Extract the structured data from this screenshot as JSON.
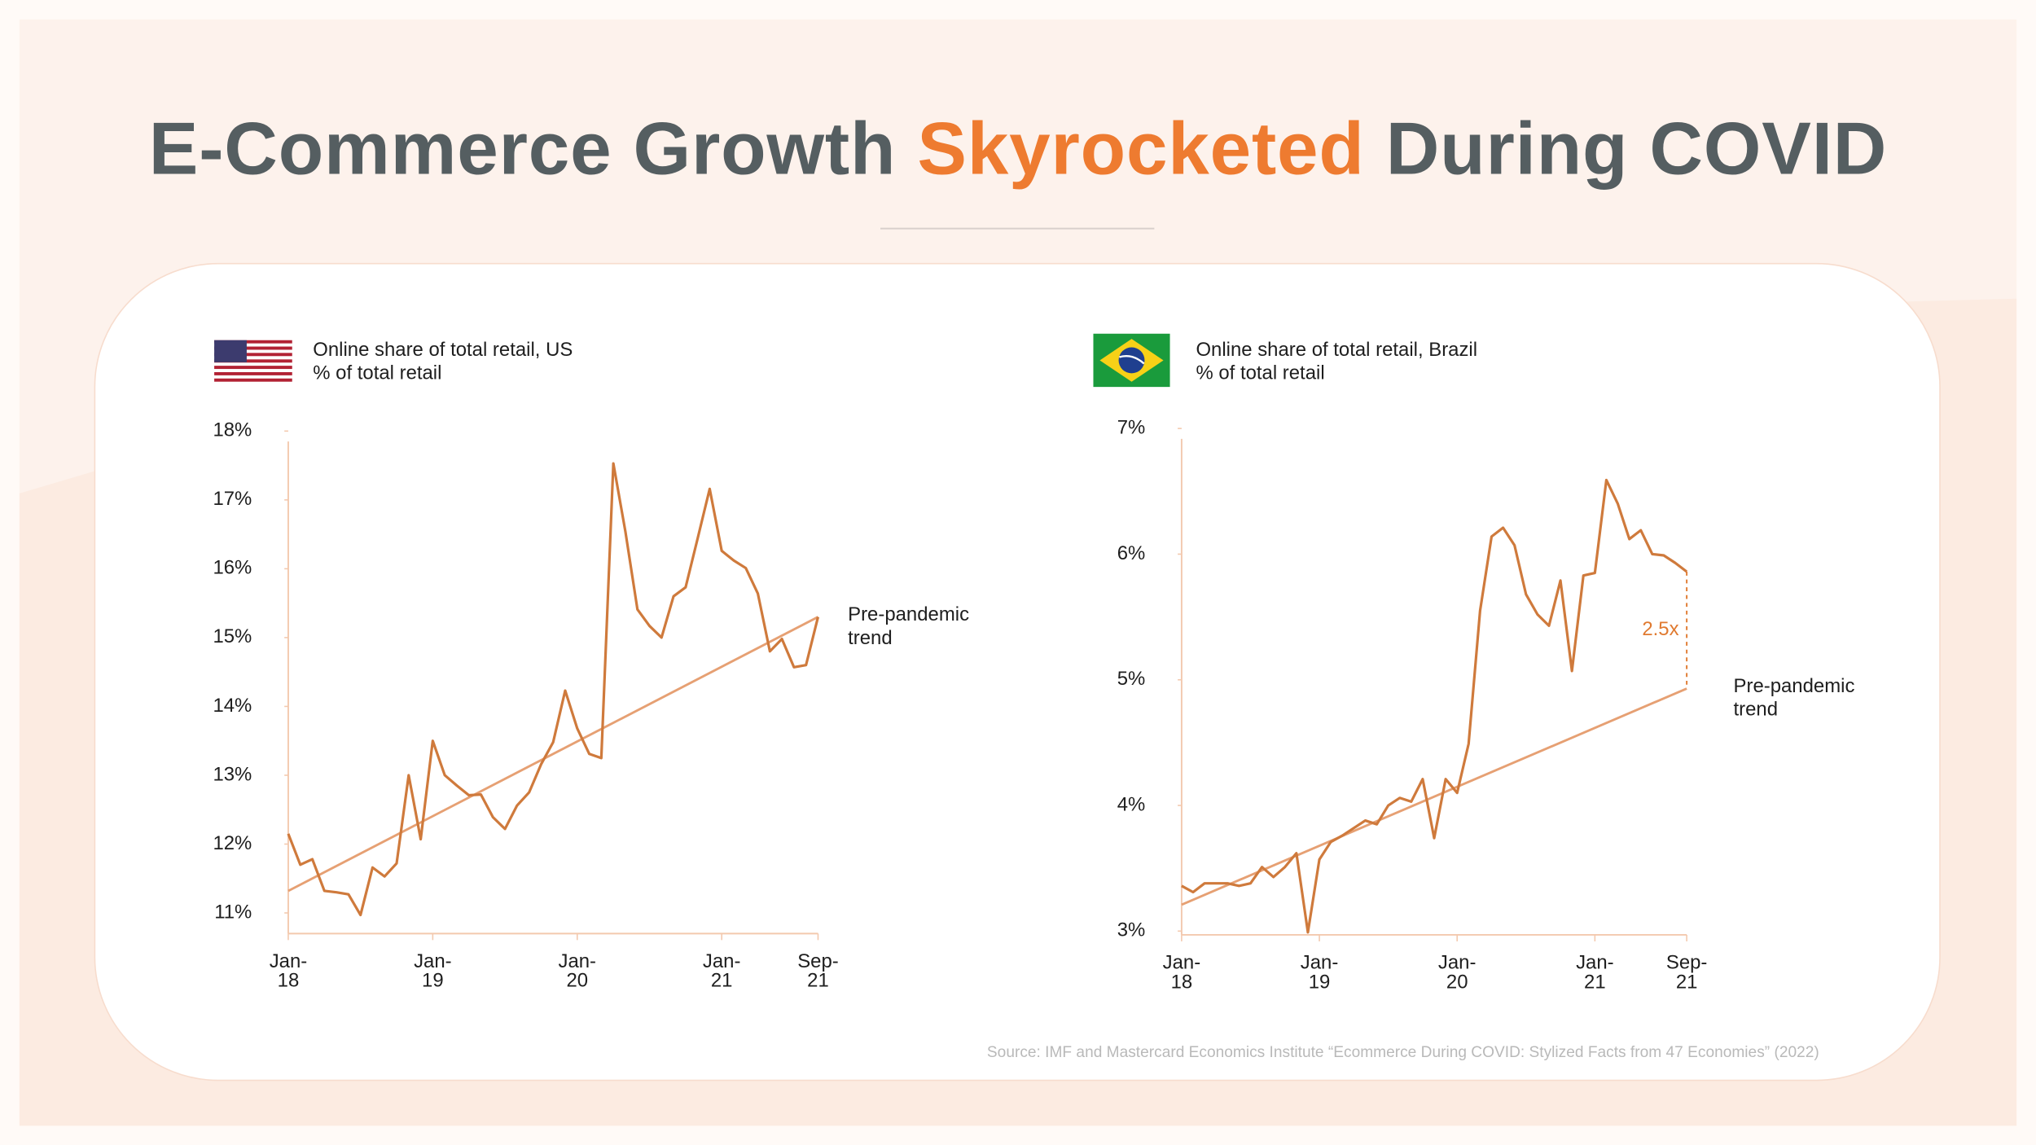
{
  "title": {
    "lead": "E-Commerce Growth",
    "highlight": "Skyrocketed",
    "tail": "During COVID"
  },
  "source": "Source: IMF and Mastercard Economics Institute “Ecommerce During COVID: Stylized Facts from 47 Economies” (2022)",
  "chart_data": [
    {
      "type": "line",
      "title": "Online share of total retail, US",
      "subtitle": "% of total retail",
      "categories": [
        "Jan-18",
        null,
        null,
        null,
        null,
        null,
        null,
        null,
        null,
        null,
        null,
        null,
        "Jan-19",
        null,
        null,
        null,
        null,
        null,
        null,
        null,
        null,
        null,
        null,
        null,
        "Jan-20",
        null,
        null,
        null,
        null,
        null,
        null,
        null,
        null,
        null,
        null,
        null,
        "Jan-21",
        null,
        null,
        null,
        null,
        null,
        null,
        null,
        "Sep-21"
      ],
      "values": [
        12.15,
        11.7,
        11.78,
        11.32,
        11.3,
        11.27,
        10.97,
        11.66,
        11.53,
        11.72,
        13.0,
        12.07,
        13.5,
        13.0,
        12.85,
        12.71,
        12.72,
        12.39,
        12.22,
        12.56,
        12.75,
        13.16,
        13.48,
        14.23,
        13.68,
        13.31,
        13.25,
        17.53,
        16.54,
        15.41,
        15.17,
        15.0,
        15.6,
        15.73,
        16.44,
        17.16,
        16.26,
        16.12,
        16.01,
        15.64,
        14.8,
        14.98,
        14.57,
        14.6,
        15.3
      ],
      "color": "#cf7a3c",
      "trend": {
        "label": "Pre-pandemic trend",
        "start": 11.32,
        "end": 15.3,
        "color": "#e6a073"
      },
      "ylim": [
        10.7,
        18
      ],
      "yticks": [
        {
          "value": 11,
          "label": "11%"
        },
        {
          "value": 12,
          "label": "12%"
        },
        {
          "value": 13,
          "label": "13%"
        },
        {
          "value": 14,
          "label": "14%"
        },
        {
          "value": 15,
          "label": "15%"
        },
        {
          "value": 16,
          "label": "16%"
        },
        {
          "value": 17,
          "label": "17%"
        },
        {
          "value": 18,
          "label": "18%"
        }
      ],
      "grid": false
    },
    {
      "type": "line",
      "title": "Online share of total retail, Brazil",
      "subtitle": "% of total retail",
      "categories": [
        "Jan-18",
        null,
        null,
        null,
        null,
        null,
        null,
        null,
        null,
        null,
        null,
        null,
        "Jan-19",
        null,
        null,
        null,
        null,
        null,
        null,
        null,
        null,
        null,
        null,
        null,
        "Jan-20",
        null,
        null,
        null,
        null,
        null,
        null,
        null,
        null,
        null,
        null,
        null,
        "Jan-21",
        null,
        null,
        null,
        null,
        null,
        null,
        null,
        "Sep-21"
      ],
      "values": [
        3.36,
        3.31,
        3.38,
        3.38,
        3.38,
        3.36,
        3.38,
        3.51,
        3.43,
        3.51,
        3.62,
        2.99,
        3.57,
        3.71,
        3.76,
        3.82,
        3.88,
        3.85,
        4.0,
        4.06,
        4.03,
        4.21,
        3.74,
        4.21,
        4.1,
        4.49,
        5.55,
        6.14,
        6.21,
        6.07,
        5.68,
        5.52,
        5.43,
        5.79,
        5.07,
        5.83,
        5.85,
        6.59,
        6.4,
        6.12,
        6.19,
        6.0,
        5.99,
        5.93,
        5.86
      ],
      "color": "#cf7a3c",
      "trend": {
        "label": "Pre-pandemic trend",
        "start": 3.21,
        "end": 4.93,
        "color": "#e6a073"
      },
      "annotation": "2.5x",
      "ylim": [
        2.97,
        7
      ],
      "yticks": [
        {
          "value": 3,
          "label": "3%"
        },
        {
          "value": 4,
          "label": "4%"
        },
        {
          "value": 5,
          "label": "5%"
        },
        {
          "value": 6,
          "label": "6%"
        },
        {
          "value": 7,
          "label": "7%"
        }
      ],
      "grid": false
    }
  ]
}
